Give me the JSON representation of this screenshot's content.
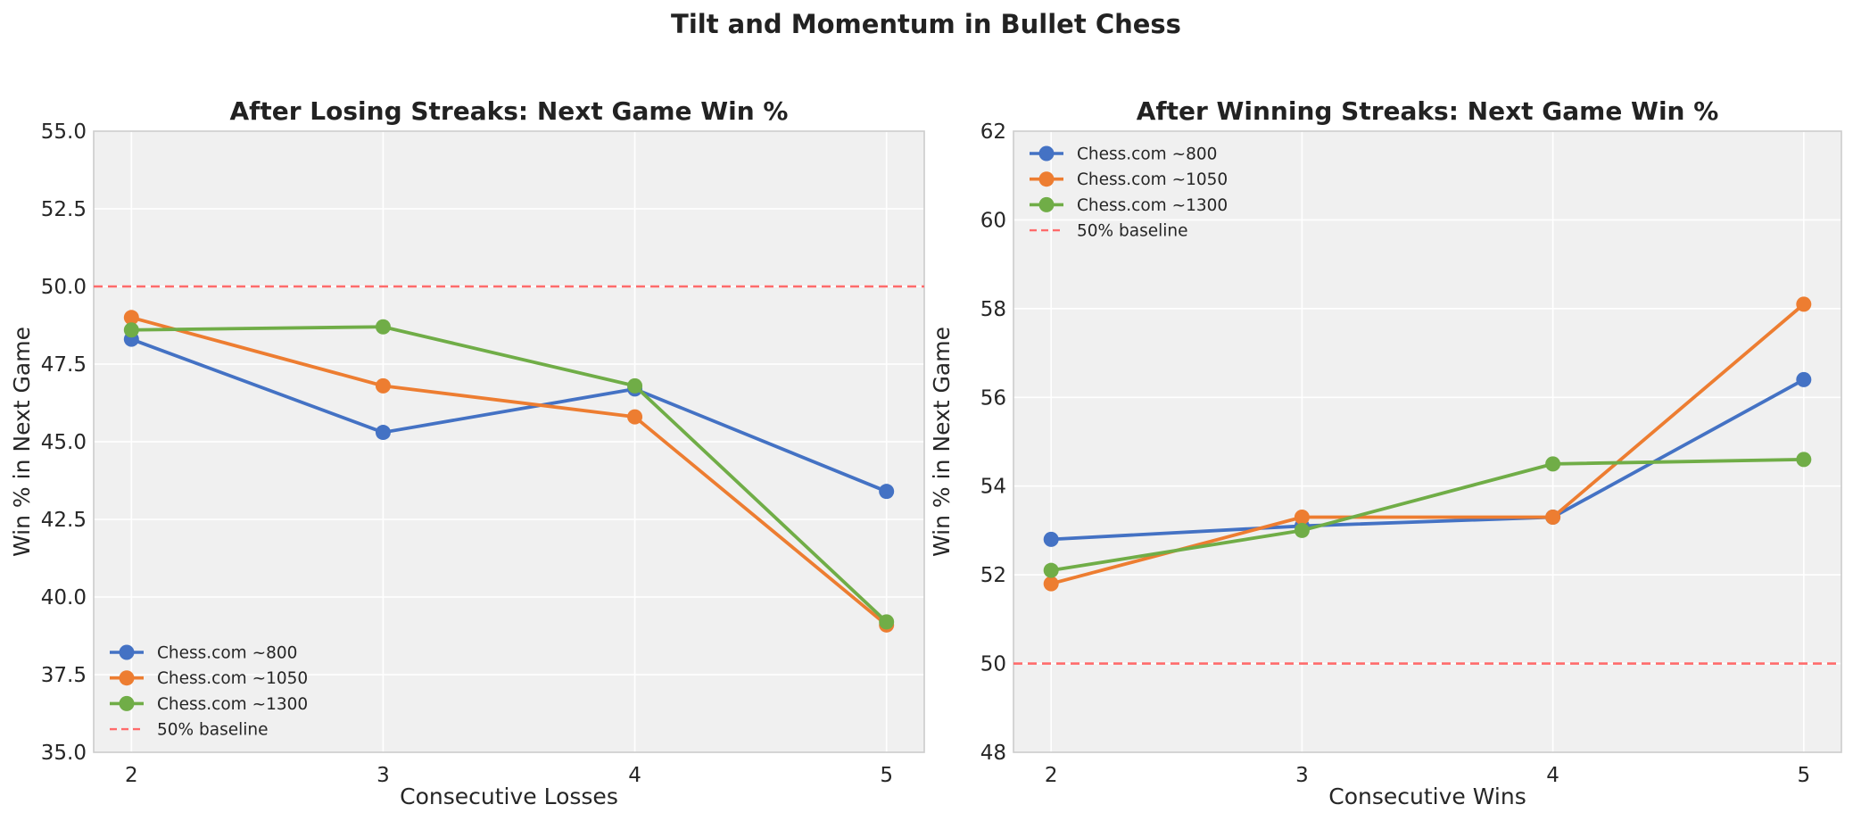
{
  "suptitle": "Tilt and Momentum in Bullet Chess",
  "colors": {
    "series": [
      "#4472c4",
      "#ed7d31",
      "#70ad47"
    ],
    "baseline": "#ff6b6b",
    "plot_bg": "#f0f0f0",
    "grid": "#ffffff",
    "frame": "#cccccc"
  },
  "chart_data": [
    {
      "type": "line",
      "title": "After Losing Streaks: Next Game Win %",
      "xlabel": "Consecutive Losses",
      "ylabel": "Win % in Next Game",
      "x": [
        2,
        3,
        4,
        5
      ],
      "xticks": [
        "2",
        "3",
        "4",
        "5"
      ],
      "xlim": [
        1.85,
        5.15
      ],
      "ylim": [
        35.0,
        55.0
      ],
      "yticks": [
        35.0,
        37.5,
        40.0,
        42.5,
        45.0,
        47.5,
        50.0,
        52.5,
        55.0
      ],
      "ytick_labels": [
        "35.0",
        "37.5",
        "40.0",
        "42.5",
        "45.0",
        "47.5",
        "50.0",
        "52.5",
        "55.0"
      ],
      "grid": true,
      "legend_position": "lower-left",
      "series": [
        {
          "name": "Chess.com ~800",
          "values": [
            48.3,
            45.3,
            46.7,
            43.4
          ]
        },
        {
          "name": "Chess.com ~1050",
          "values": [
            49.0,
            46.8,
            45.8,
            39.1
          ]
        },
        {
          "name": "Chess.com ~1300",
          "values": [
            48.6,
            48.7,
            46.8,
            39.2
          ]
        }
      ],
      "baseline": {
        "name": "50% baseline",
        "value": 50
      }
    },
    {
      "type": "line",
      "title": "After Winning Streaks: Next Game Win %",
      "xlabel": "Consecutive Wins",
      "ylabel": "Win % in Next Game",
      "x": [
        2,
        3,
        4,
        5
      ],
      "xticks": [
        "2",
        "3",
        "4",
        "5"
      ],
      "xlim": [
        1.85,
        5.15
      ],
      "ylim": [
        48,
        62
      ],
      "yticks": [
        48,
        50,
        52,
        54,
        56,
        58,
        60,
        62
      ],
      "ytick_labels": [
        "48",
        "50",
        "52",
        "54",
        "56",
        "58",
        "60",
        "62"
      ],
      "grid": true,
      "legend_position": "upper-left",
      "series": [
        {
          "name": "Chess.com ~800",
          "values": [
            52.8,
            53.1,
            53.3,
            56.4
          ]
        },
        {
          "name": "Chess.com ~1050",
          "values": [
            51.8,
            53.3,
            53.3,
            58.1
          ]
        },
        {
          "name": "Chess.com ~1300",
          "values": [
            52.1,
            53.0,
            54.5,
            54.6
          ]
        }
      ],
      "baseline": {
        "name": "50% baseline",
        "value": 50
      }
    }
  ]
}
